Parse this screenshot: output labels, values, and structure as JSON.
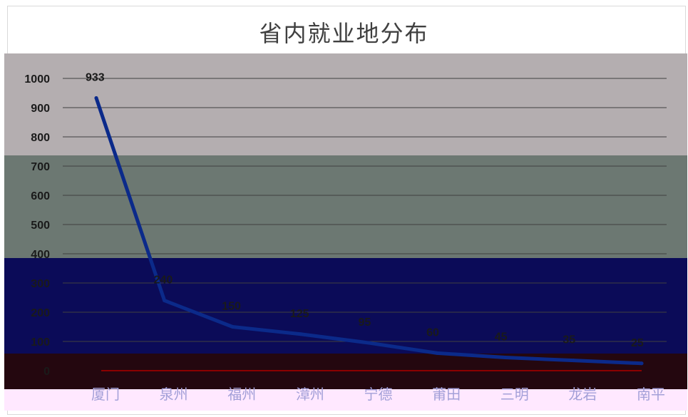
{
  "chart_data": {
    "type": "line",
    "title": "省内就业地分布",
    "categories": [
      "厦门",
      "泉州",
      "福州",
      "漳州",
      "宁德",
      "莆田",
      "三明",
      "龙岩",
      "南平"
    ],
    "series": [
      {
        "values": [
          933,
          240,
          150,
          125,
          95,
          60,
          45,
          35,
          25
        ]
      }
    ],
    "data_labels": [
      "933",
      "240",
      "150",
      "125",
      "95",
      "60",
      "45",
      "35",
      "25"
    ],
    "ylim": [
      0,
      1000
    ],
    "yticks": [
      0,
      100,
      200,
      300,
      400,
      500,
      600,
      700,
      800,
      900,
      1000
    ],
    "grid": true,
    "colors": {
      "line": "#0b2a8a",
      "gridline": "#404040",
      "band_gray": "#b4aeb0",
      "band_green": "#6c7872",
      "band_navy": "#0b0b58",
      "band_maroon": "#24070f",
      "band_pink": "#ffe8ff",
      "baseline": "#8b0000"
    }
  }
}
